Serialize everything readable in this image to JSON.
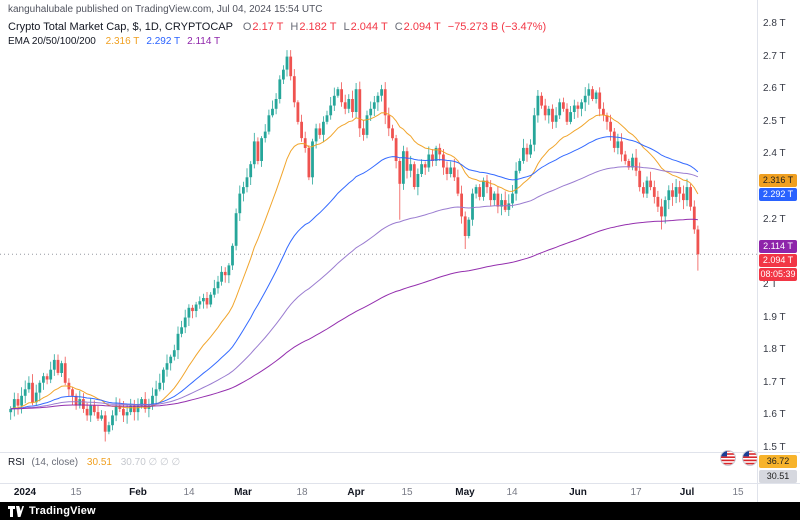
{
  "publisher": {
    "text": "kanguhalubale published on TradingView.com, Jul 04, 2024 15:54 UTC"
  },
  "legend": {
    "title": "Crypto Total Market Cap, $, 1D, CRYPTOCAP",
    "ohlc": {
      "items": [
        {
          "k": "O",
          "v": "2.17 T"
        },
        {
          "k": "H",
          "v": "2.182 T"
        },
        {
          "k": "L",
          "v": "2.044 T"
        },
        {
          "k": "C",
          "v": "2.094 T"
        }
      ],
      "change": "−75.273 B (−3.47%)",
      "value_color": "#f23645"
    },
    "ema": {
      "label": "EMA 20/50/100/200",
      "values": [
        {
          "text": "2.316 T",
          "color": "#f0a021"
        },
        {
          "text": "2.292 T",
          "color": "#2962ff"
        },
        {
          "text": "2.114 T",
          "color": "#8e24aa"
        }
      ]
    }
  },
  "rsi_pane": {
    "label": "RSI",
    "params": "(14, close)",
    "value": "30.51",
    "value_color": "#f0a021",
    "extra": "30.70 ∅ ∅ ∅",
    "badges": [
      {
        "text": "36.72",
        "bg": "#f7b32b",
        "fg": "#1d1d1d"
      },
      {
        "text": "30.51",
        "bg": "#d6d8df",
        "fg": "#1d1d1d"
      }
    ]
  },
  "watermark": {
    "brand": "TradingView"
  },
  "y_axis": {
    "labels": [
      {
        "text": "2.8 T",
        "price": 2.8
      },
      {
        "text": "2.7 T",
        "price": 2.7
      },
      {
        "text": "2.6 T",
        "price": 2.6
      },
      {
        "text": "2.5 T",
        "price": 2.5
      },
      {
        "text": "2.4 T",
        "price": 2.4
      },
      {
        "text": "2.2 T",
        "price": 2.2
      },
      {
        "text": "2 T",
        "price": 2.0
      },
      {
        "text": "1.9 T",
        "price": 1.9
      },
      {
        "text": "1.8 T",
        "price": 1.8
      },
      {
        "text": "1.7 T",
        "price": 1.7
      },
      {
        "text": "1.6 T",
        "price": 1.6
      },
      {
        "text": "1.5 T",
        "price": 1.5
      }
    ]
  },
  "price_badges": [
    {
      "text": "2.316 T",
      "price": 2.316,
      "bg": "#f0a021",
      "fg": "#1d1d1d"
    },
    {
      "text": "2.292 T",
      "price": 2.292,
      "bg": "#2962ff",
      "fg": "#ffffff"
    },
    {
      "text": "2.114 T",
      "price": 2.114,
      "bg": "#8e24aa",
      "fg": "#ffffff"
    },
    {
      "text": "2.094 T",
      "price": 2.094,
      "bg": "#f23645",
      "fg": "#ffffff",
      "countdown": "08:05:39"
    }
  ],
  "x_axis": {
    "labels": [
      {
        "text": "2024",
        "day": 4,
        "major": true
      },
      {
        "text": "15",
        "day": 18,
        "major": false
      },
      {
        "text": "Feb",
        "day": 35,
        "major": true
      },
      {
        "text": "14",
        "day": 49,
        "major": false
      },
      {
        "text": "Mar",
        "day": 64,
        "major": true
      },
      {
        "text": "18",
        "day": 80,
        "major": false
      },
      {
        "text": "Apr",
        "day": 95,
        "major": true
      },
      {
        "text": "15",
        "day": 109,
        "major": false
      },
      {
        "text": "May",
        "day": 125,
        "major": true
      },
      {
        "text": "14",
        "day": 138,
        "major": false
      },
      {
        "text": "Jun",
        "day": 156,
        "major": true
      },
      {
        "text": "17",
        "day": 172,
        "major": false
      },
      {
        "text": "Jul",
        "day": 186,
        "major": true
      },
      {
        "text": "15",
        "day": 200,
        "major": false
      }
    ]
  },
  "chart_data": {
    "type": "candlestick",
    "title": "Crypto Total Market Cap",
    "currency": "$",
    "interval": "1D",
    "exchange": "CRYPTOCAP",
    "start_date": "2023-12-28",
    "unit": "T (trillions USD)",
    "y_axis_range": [
      1.45,
      2.85
    ],
    "up_color": "#26a69a",
    "down_color": "#ef5350",
    "price_line": 2.094,
    "closes": [
      1.62,
      1.65,
      1.63,
      1.66,
      1.68,
      1.7,
      1.64,
      1.67,
      1.7,
      1.72,
      1.71,
      1.74,
      1.77,
      1.73,
      1.76,
      1.7,
      1.68,
      1.66,
      1.63,
      1.65,
      1.62,
      1.6,
      1.63,
      1.61,
      1.59,
      1.6,
      1.55,
      1.57,
      1.6,
      1.63,
      1.62,
      1.6,
      1.61,
      1.63,
      1.61,
      1.63,
      1.65,
      1.62,
      1.63,
      1.66,
      1.68,
      1.7,
      1.74,
      1.76,
      1.78,
      1.8,
      1.85,
      1.87,
      1.9,
      1.93,
      1.92,
      1.94,
      1.95,
      1.96,
      1.94,
      1.97,
      1.99,
      2.01,
      2.04,
      2.03,
      2.06,
      2.12,
      2.22,
      2.28,
      2.3,
      2.33,
      2.37,
      2.44,
      2.38,
      2.45,
      2.47,
      2.52,
      2.54,
      2.57,
      2.63,
      2.66,
      2.7,
      2.64,
      2.56,
      2.5,
      2.45,
      2.42,
      2.33,
      2.44,
      2.48,
      2.46,
      2.5,
      2.52,
      2.55,
      2.58,
      2.6,
      2.56,
      2.54,
      2.57,
      2.53,
      2.6,
      2.48,
      2.46,
      2.52,
      2.54,
      2.56,
      2.58,
      2.6,
      2.52,
      2.48,
      2.45,
      2.38,
      2.31,
      2.41,
      2.35,
      2.37,
      2.3,
      2.34,
      2.37,
      2.36,
      2.4,
      2.38,
      2.42,
      2.4,
      2.36,
      2.34,
      2.36,
      2.33,
      2.28,
      2.21,
      2.15,
      2.2,
      2.28,
      2.3,
      2.27,
      2.32,
      2.3,
      2.26,
      2.28,
      2.24,
      2.26,
      2.23,
      2.25,
      2.28,
      2.35,
      2.38,
      2.42,
      2.4,
      2.43,
      2.52,
      2.58,
      2.55,
      2.52,
      2.54,
      2.5,
      2.52,
      2.56,
      2.54,
      2.5,
      2.53,
      2.55,
      2.54,
      2.56,
      2.58,
      2.6,
      2.57,
      2.59,
      2.54,
      2.52,
      2.5,
      2.47,
      2.42,
      2.44,
      2.4,
      2.38,
      2.36,
      2.39,
      2.35,
      2.3,
      2.28,
      2.32,
      2.3,
      2.27,
      2.24,
      2.21,
      2.26,
      2.29,
      2.27,
      2.3,
      2.28,
      2.26,
      2.3,
      2.24,
      2.17,
      2.094
    ],
    "wick_overrides": {
      "26": {
        "l": 1.52
      },
      "76": {
        "h": 2.72
      },
      "77": {
        "h": 2.72
      },
      "107": {
        "l": 2.2
      },
      "125": {
        "l": 2.11
      },
      "179": {
        "l": 2.17
      },
      "189": {
        "o": 2.17,
        "h": 2.182,
        "l": 2.044,
        "c": 2.094
      }
    },
    "last_bar": {
      "open": 2.17,
      "high": 2.182,
      "low": 2.044,
      "close": 2.094,
      "change": "−75.273 B",
      "change_pct": "−3.47%"
    },
    "emas": {
      "periods": [
        20,
        50,
        100,
        200
      ],
      "colors": [
        "#f0a021",
        "#2962ff",
        "#9575cd",
        "#8e24aa"
      ],
      "last_values": [
        2.316,
        2.292,
        2.114
      ]
    },
    "rsi": {
      "period": 14,
      "source": "close",
      "last": 30.51,
      "ma_last": 36.72
    }
  }
}
